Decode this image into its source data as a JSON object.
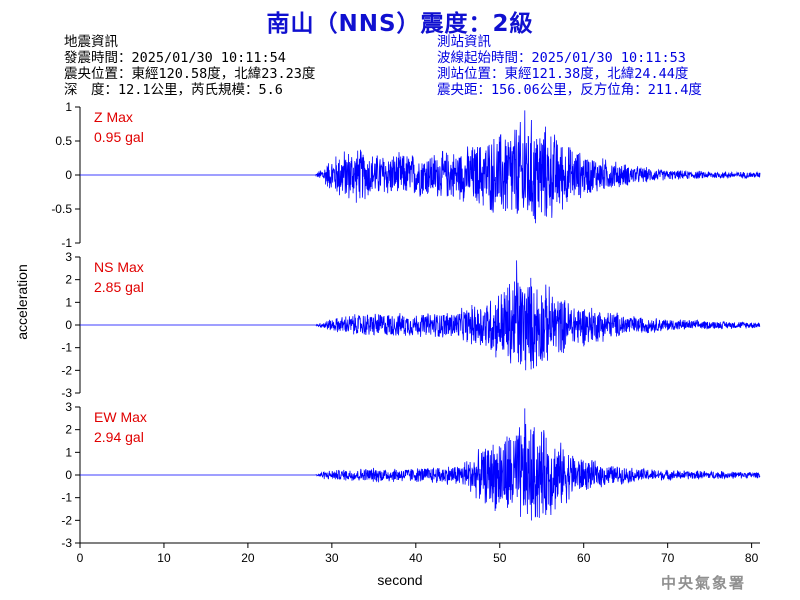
{
  "title": "南山（NNS）震度：2級",
  "earthquake_info": {
    "header": "地震資訊",
    "lines": [
      "發震時間：2025/01/30 10:11:54",
      "震央位置：東經120.58度，北緯23.23度",
      "深　度：12.1公里，芮氏規模：5.6"
    ]
  },
  "station_info": {
    "header": "測站資訊",
    "lines": [
      "波線起始時間：2025/01/30 10:11:53",
      "測站位置：東經121.38度，北緯24.44度",
      "震央距：156.06公里，反方位角：211.4度"
    ]
  },
  "panels": [
    {
      "name": "Z Max",
      "max": "0.95 gal"
    },
    {
      "name": "NS Max",
      "max": "2.85 gal"
    },
    {
      "name": "EW Max",
      "max": "2.94 gal"
    }
  ],
  "ylabel": "acceleration",
  "xlabel": "second",
  "watermark": "中央氣象署",
  "colors": {
    "trace": "#0000ff",
    "title": "#1010d0",
    "station": "#0000e0",
    "maxlabel": "#e00000"
  },
  "chart_data": [
    {
      "type": "line",
      "component": "Z",
      "xlim": [
        0,
        81
      ],
      "ylim": [
        -1,
        1
      ],
      "yticks": [
        -1,
        -0.5,
        0,
        0.5,
        1
      ],
      "ytick_labels": [
        "-1",
        "-0.5",
        "0",
        "0.5",
        "1"
      ],
      "onset": 28,
      "peak_time": 53,
      "peak_abs": 0.95,
      "envelope": [
        [
          0,
          0
        ],
        [
          28,
          0
        ],
        [
          29,
          0.15
        ],
        [
          31,
          0.4
        ],
        [
          33,
          0.45
        ],
        [
          35,
          0.35
        ],
        [
          40,
          0.35
        ],
        [
          45,
          0.4
        ],
        [
          48,
          0.55
        ],
        [
          50,
          0.7
        ],
        [
          52,
          0.85
        ],
        [
          54,
          0.9
        ],
        [
          56,
          0.75
        ],
        [
          58,
          0.5
        ],
        [
          60,
          0.35
        ],
        [
          63,
          0.25
        ],
        [
          66,
          0.15
        ],
        [
          70,
          0.08
        ],
        [
          75,
          0.06
        ],
        [
          81,
          0.05
        ]
      ]
    },
    {
      "type": "line",
      "component": "NS",
      "xlim": [
        0,
        81
      ],
      "ylim": [
        -3,
        3
      ],
      "yticks": [
        -3,
        -2,
        -1,
        0,
        1,
        2,
        3
      ],
      "ytick_labels": [
        "-3",
        "-2",
        "-1",
        "0",
        "1",
        "2",
        "3"
      ],
      "onset": 28,
      "peak_time": 52,
      "peak_abs": 2.85,
      "envelope": [
        [
          0,
          0
        ],
        [
          28,
          0
        ],
        [
          29,
          0.2
        ],
        [
          32,
          0.5
        ],
        [
          35,
          0.6
        ],
        [
          40,
          0.55
        ],
        [
          45,
          0.7
        ],
        [
          48,
          1.2
        ],
        [
          50,
          1.7
        ],
        [
          52,
          2.6
        ],
        [
          54,
          2.3
        ],
        [
          56,
          1.8
        ],
        [
          58,
          1.2
        ],
        [
          60,
          1.0
        ],
        [
          63,
          0.7
        ],
        [
          66,
          0.45
        ],
        [
          70,
          0.3
        ],
        [
          75,
          0.2
        ],
        [
          81,
          0.15
        ]
      ]
    },
    {
      "type": "line",
      "component": "EW",
      "xlim": [
        0,
        81
      ],
      "ylim": [
        -3,
        3
      ],
      "yticks": [
        -3,
        -2,
        -1,
        0,
        1,
        2,
        3
      ],
      "ytick_labels": [
        "-3",
        "-2",
        "-1",
        "0",
        "1",
        "2",
        "3"
      ],
      "onset": 28,
      "peak_time": 53,
      "peak_abs": 2.94,
      "envelope": [
        [
          0,
          0
        ],
        [
          28,
          0
        ],
        [
          29,
          0.2
        ],
        [
          32,
          0.3
        ],
        [
          35,
          0.35
        ],
        [
          40,
          0.35
        ],
        [
          45,
          0.5
        ],
        [
          48,
          1.3
        ],
        [
          50,
          1.9
        ],
        [
          52,
          2.4
        ],
        [
          54,
          2.5
        ],
        [
          56,
          2.0
        ],
        [
          58,
          1.3
        ],
        [
          60,
          0.8
        ],
        [
          63,
          0.5
        ],
        [
          66,
          0.35
        ],
        [
          70,
          0.25
        ],
        [
          75,
          0.2
        ],
        [
          81,
          0.15
        ]
      ]
    }
  ],
  "xaxis": {
    "ticks": [
      0,
      10,
      20,
      30,
      40,
      50,
      60,
      70,
      80
    ],
    "tick_labels": [
      "0",
      "10",
      "20",
      "30",
      "40",
      "50",
      "60",
      "70",
      "80"
    ]
  }
}
